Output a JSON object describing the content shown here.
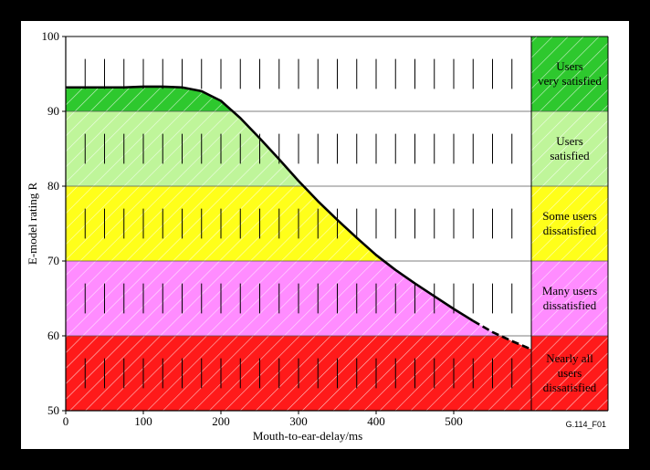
{
  "chart_data": {
    "type": "area",
    "xlabel": "Mouth-to-ear-delay/ms",
    "ylabel": "E-model rating R",
    "xlim": [
      0,
      600
    ],
    "ylim": [
      50,
      100
    ],
    "x_ticks": [
      "0",
      "100",
      "200",
      "300",
      "400",
      "500"
    ],
    "y_ticks": [
      "50",
      "60",
      "70",
      "80",
      "90",
      "100"
    ],
    "figure_id": "G.114_F01",
    "zones": [
      {
        "lines": [
          "Nearly all",
          "users",
          "dissatisfied"
        ],
        "r_min": 50,
        "r_max": 60,
        "color": "#ff1a1a"
      },
      {
        "lines": [
          "Many users",
          "dissatisfied"
        ],
        "r_min": 60,
        "r_max": 70,
        "color": "#ff8cff"
      },
      {
        "lines": [
          "Some users",
          "dissatisfied"
        ],
        "r_min": 70,
        "r_max": 80,
        "color": "#ffff1a"
      },
      {
        "lines": [
          "Users",
          "satisfied"
        ],
        "r_min": 80,
        "r_max": 90,
        "color": "#bff59a"
      },
      {
        "lines": [
          "Users",
          "very satisfied"
        ],
        "r_min": 90,
        "r_max": 100,
        "color": "#2ec82e"
      }
    ],
    "series": [
      {
        "x": [
          0,
          25,
          50,
          75,
          100,
          125,
          150,
          175,
          200,
          225,
          250,
          275,
          300,
          325,
          350,
          375,
          400,
          425,
          450,
          475,
          500,
          525
        ],
        "values": [
          93.2,
          93.2,
          93.2,
          93.2,
          93.3,
          93.3,
          93.2,
          92.7,
          91.4,
          89.1,
          86.4,
          83.6,
          80.7,
          78.0,
          75.5,
          73.1,
          70.8,
          68.8,
          67.0,
          65.3,
          63.6,
          62.0
        ],
        "style": "solid"
      },
      {
        "x": [
          525,
          550,
          575,
          600
        ],
        "values": [
          62.0,
          60.5,
          59.3,
          58.2
        ],
        "style": "dashed"
      }
    ]
  }
}
